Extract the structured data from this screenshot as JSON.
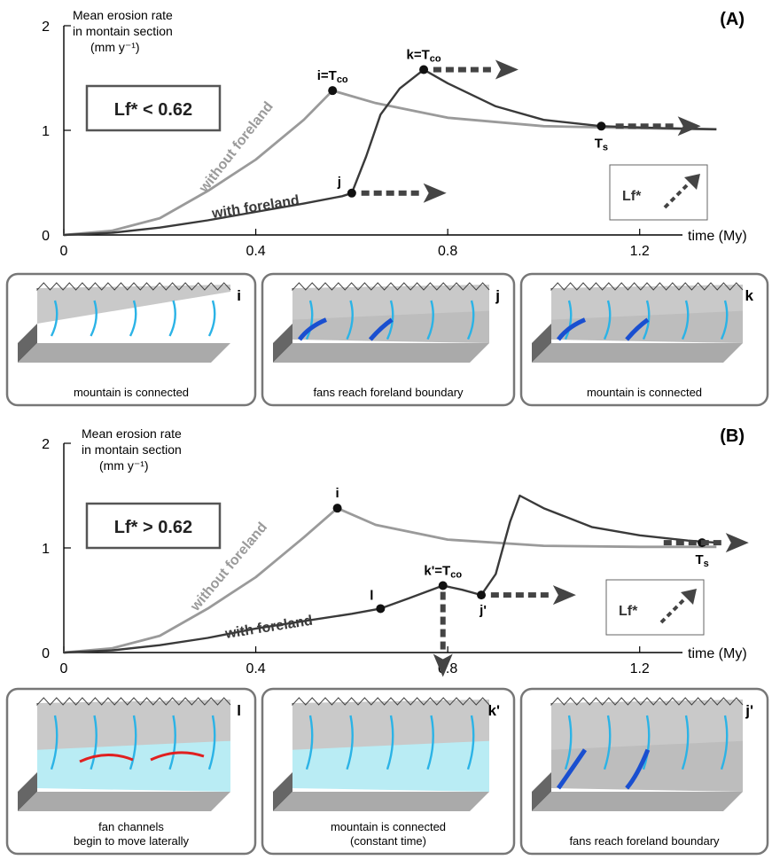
{
  "chart_data": [
    {
      "type": "line",
      "panel_label": "(A)",
      "ylabel": [
        "Mean erosion rate",
        "in montain section",
        "(mm y⁻¹)"
      ],
      "xlabel": "time (My)",
      "xlim": [
        0,
        1.4
      ],
      "ylim": [
        0,
        2
      ],
      "x_ticks": [
        "0",
        "0.4",
        "0.8",
        "1.2"
      ],
      "y_ticks": [
        "0",
        "1",
        "2"
      ],
      "box_label": "Lf* < 0.62",
      "inset_label": "Lf*",
      "series": [
        {
          "name": "without foreland",
          "points": [
            [
              0,
              0
            ],
            [
              0.1,
              0.04
            ],
            [
              0.2,
              0.16
            ],
            [
              0.3,
              0.42
            ],
            [
              0.4,
              0.72
            ],
            [
              0.5,
              1.1
            ],
            [
              0.56,
              1.38
            ],
            [
              0.65,
              1.26
            ],
            [
              0.8,
              1.12
            ],
            [
              1.0,
              1.04
            ],
            [
              1.2,
              1.02
            ],
            [
              1.36,
              1.01
            ]
          ]
        },
        {
          "name": "with foreland",
          "points": [
            [
              0,
              0
            ],
            [
              0.1,
              0.02
            ],
            [
              0.2,
              0.07
            ],
            [
              0.3,
              0.14
            ],
            [
              0.4,
              0.22
            ],
            [
              0.5,
              0.3
            ],
            [
              0.58,
              0.37
            ],
            [
              0.6,
              0.4
            ],
            [
              0.63,
              0.75
            ],
            [
              0.66,
              1.15
            ],
            [
              0.7,
              1.4
            ],
            [
              0.75,
              1.58
            ],
            [
              0.8,
              1.45
            ],
            [
              0.9,
              1.23
            ],
            [
              1.0,
              1.1
            ],
            [
              1.12,
              1.04
            ],
            [
              1.25,
              1.02
            ],
            [
              1.36,
              1.01
            ]
          ]
        }
      ],
      "markers": [
        {
          "label": "i=T",
          "sub": "co",
          "x": 0.56,
          "y": 1.38
        },
        {
          "label": "j",
          "x": 0.6,
          "y": 0.4
        },
        {
          "label": "k=T",
          "sub": "co",
          "x": 0.75,
          "y": 1.58
        },
        {
          "label": "T",
          "sub": "s",
          "x": 1.12,
          "y": 1.04
        }
      ]
    },
    {
      "type": "line",
      "panel_label": "(B)",
      "ylabel": [
        "Mean erosion rate",
        "in montain section",
        "(mm y⁻¹)"
      ],
      "xlabel": "time (My)",
      "xlim": [
        0,
        1.4
      ],
      "ylim": [
        0,
        2
      ],
      "x_ticks": [
        "0",
        "0.4",
        "0.8",
        "1.2"
      ],
      "y_ticks": [
        "0",
        "1",
        "2"
      ],
      "box_label": "Lf* > 0.62",
      "inset_label": "Lf*",
      "series": [
        {
          "name": "without foreland",
          "points": [
            [
              0,
              0
            ],
            [
              0.1,
              0.04
            ],
            [
              0.2,
              0.16
            ],
            [
              0.3,
              0.42
            ],
            [
              0.4,
              0.72
            ],
            [
              0.5,
              1.1
            ],
            [
              0.57,
              1.38
            ],
            [
              0.65,
              1.22
            ],
            [
              0.8,
              1.08
            ],
            [
              1.0,
              1.02
            ],
            [
              1.2,
              1.01
            ],
            [
              1.36,
              1.01
            ]
          ]
        },
        {
          "name": "with foreland",
          "points": [
            [
              0,
              0
            ],
            [
              0.1,
              0.02
            ],
            [
              0.2,
              0.07
            ],
            [
              0.3,
              0.14
            ],
            [
              0.4,
              0.23
            ],
            [
              0.5,
              0.3
            ],
            [
              0.6,
              0.37
            ],
            [
              0.66,
              0.42
            ],
            [
              0.72,
              0.52
            ],
            [
              0.79,
              0.64
            ],
            [
              0.83,
              0.6
            ],
            [
              0.87,
              0.55
            ],
            [
              0.9,
              0.75
            ],
            [
              0.93,
              1.25
            ],
            [
              0.95,
              1.5
            ],
            [
              1.0,
              1.38
            ],
            [
              1.1,
              1.2
            ],
            [
              1.2,
              1.12
            ],
            [
              1.3,
              1.07
            ],
            [
              1.36,
              1.05
            ]
          ]
        }
      ],
      "markers": [
        {
          "label": "i",
          "x": 0.57,
          "y": 1.38
        },
        {
          "label": "l",
          "x": 0.66,
          "y": 0.42
        },
        {
          "label": "k'=T",
          "sub": "co",
          "x": 0.79,
          "y": 0.64
        },
        {
          "label": "j'",
          "x": 0.87,
          "y": 0.55
        },
        {
          "label": "T",
          "sub": "s",
          "x": 1.33,
          "y": 1.05
        }
      ]
    }
  ],
  "panels_A": [
    {
      "letter": "i",
      "caption": "mountain is connected"
    },
    {
      "letter": "j",
      "caption": "fans reach foreland boundary"
    },
    {
      "letter": "k",
      "caption": "mountain is connected"
    }
  ],
  "panels_B": [
    {
      "letter": "l",
      "caption": "fan channels\nbegin to move laterally"
    },
    {
      "letter": "k'",
      "caption": "mountain is connected\n(constant time)"
    },
    {
      "letter": "j'",
      "caption": "fans reach foreland boundary"
    }
  ],
  "colors": {
    "without": "#9a9a9a",
    "with": "#3a3a3a",
    "box": "#555555",
    "arrow": "#444444"
  }
}
